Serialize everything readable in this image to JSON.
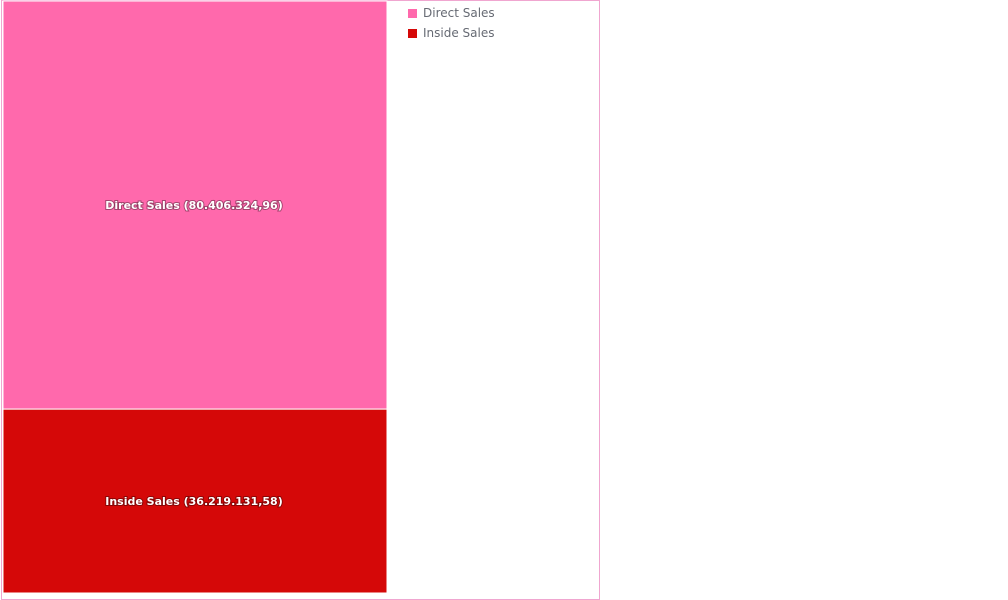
{
  "chart_data": {
    "type": "treemap",
    "title": "",
    "series": [
      {
        "name": "Direct Sales",
        "value": 80406324.96,
        "label": "Direct Sales (80.406.324,96)",
        "color": "#ff69ac"
      },
      {
        "name": "Inside Sales",
        "value": 36219131.58,
        "label": "Inside Sales (36.219.131,58)",
        "color": "#d50808"
      }
    ],
    "legend": {
      "position": "top-right"
    }
  }
}
